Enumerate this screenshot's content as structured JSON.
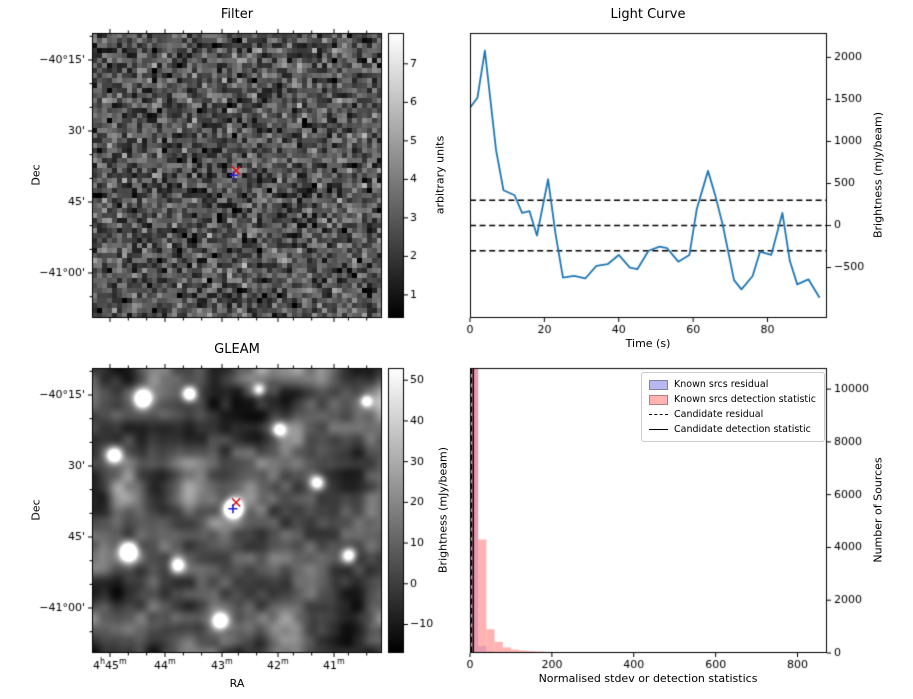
{
  "figure": {
    "background": "#ffffff"
  },
  "chart_data": [
    {
      "id": "filter",
      "type": "heatmap",
      "title": "Filter",
      "ylabel": "Dec",
      "ytick_labels": [
        "−40°15'",
        "30'",
        "45'",
        "−41°00'"
      ],
      "ytick_pos": [
        0.0947,
        0.3439,
        0.593,
        0.8421
      ],
      "xtick_pos": [
        0.062,
        0.2517,
        0.4483,
        0.6414,
        0.8345
      ],
      "colorbar": {
        "label": "arbitrary units",
        "ticks": [
          1,
          2,
          3,
          4,
          5,
          6,
          7
        ],
        "vmin": 0.4,
        "vmax": 7.8
      },
      "noise": {
        "kind": "fine",
        "mean": 2.8,
        "std": 1.05,
        "seed": 1234
      },
      "markers": [
        {
          "shape": "x",
          "color": "#dd1111",
          "rx": 0.497,
          "ry": 0.483
        },
        {
          "shape": "+",
          "color": "#2222cc",
          "rx": 0.488,
          "ry": 0.499
        }
      ]
    },
    {
      "id": "light_curve",
      "type": "line",
      "title": "Light Curve",
      "xlabel": "Time (s)",
      "ylabel": "Brightness (mJy/beam)",
      "line_color": "#1f77b4",
      "x": [
        0,
        2,
        4,
        7,
        9,
        12,
        14,
        16,
        18,
        21,
        23,
        25,
        28,
        31,
        34,
        37,
        40,
        43,
        45,
        48,
        51,
        53,
        56,
        59,
        61,
        64,
        66,
        68,
        71,
        73,
        76,
        78,
        81,
        84,
        86,
        88,
        91,
        94
      ],
      "y": [
        1400,
        1520,
        2080,
        900,
        420,
        360,
        150,
        170,
        -120,
        550,
        -100,
        -620,
        -600,
        -630,
        -480,
        -460,
        -350,
        -500,
        -520,
        -300,
        -250,
        -270,
        -430,
        -350,
        200,
        650,
        350,
        0,
        -650,
        -760,
        -600,
        -310,
        -350,
        150,
        -420,
        -700,
        -640,
        -860
      ],
      "dashed_hlines": [
        300,
        0,
        -300
      ],
      "xlim": [
        0,
        96
      ],
      "ylim": [
        -1100,
        2290
      ],
      "xticks": [
        0,
        20,
        40,
        60,
        80
      ],
      "yticks": [
        -500,
        0,
        500,
        1000,
        1500,
        2000
      ]
    },
    {
      "id": "gleam",
      "type": "heatmap",
      "title": "GLEAM",
      "xlabel": "RA",
      "ylabel": "Dec",
      "xtick_labels": [
        "4h45m",
        "44m",
        "43m",
        "42m",
        "41m"
      ],
      "xtick_pos": [
        0.062,
        0.2517,
        0.4483,
        0.6414,
        0.8345
      ],
      "ytick_labels": [
        "−40°15'",
        "30'",
        "45'",
        "−41°00'"
      ],
      "ytick_pos": [
        0.0947,
        0.3439,
        0.593,
        0.8421
      ],
      "colorbar": {
        "label": "Brightness (mJy/beam)",
        "ticks": [
          -10,
          0,
          10,
          20,
          30,
          40,
          50
        ],
        "vmin": -17,
        "vmax": 53
      },
      "noise": {
        "kind": "smooth",
        "seed": 77
      },
      "blobs": [
        [
          0.487,
          0.492,
          160,
          5.5
        ],
        [
          0.175,
          0.105,
          90,
          6
        ],
        [
          0.335,
          0.09,
          70,
          5
        ],
        [
          0.075,
          0.305,
          75,
          5.5
        ],
        [
          0.125,
          0.645,
          95,
          6.5
        ],
        [
          0.295,
          0.69,
          60,
          5
        ],
        [
          0.44,
          0.885,
          75,
          5.5
        ],
        [
          0.775,
          0.4,
          65,
          5
        ],
        [
          0.645,
          0.215,
          55,
          4.5
        ],
        [
          0.885,
          0.655,
          60,
          5
        ],
        [
          0.575,
          0.075,
          55,
          4.5
        ],
        [
          0.945,
          0.115,
          50,
          4
        ]
      ],
      "markers": [
        {
          "shape": "x",
          "color": "#dd1111",
          "rx": 0.497,
          "ry": 0.472
        },
        {
          "shape": "+",
          "color": "#2222cc",
          "rx": 0.486,
          "ry": 0.494
        }
      ]
    },
    {
      "id": "histogram",
      "type": "histogram",
      "xlabel": "Normalised stdev or detection statistics",
      "ylabel": "Number of Sources",
      "bin_width": 20,
      "series": [
        {
          "name": "Known srcs residual",
          "color": "#8888ea",
          "alpha": 0.55,
          "values": [
            10900,
            260,
            60,
            25,
            12,
            8,
            5,
            4,
            3,
            2,
            2,
            1,
            1,
            1,
            1,
            0,
            0,
            0,
            0,
            0,
            0,
            0,
            0,
            0,
            0,
            0,
            0,
            0,
            0,
            0,
            0,
            0,
            0,
            0,
            0,
            0,
            0,
            0,
            0,
            0,
            0,
            0,
            0,
            0
          ]
        },
        {
          "name": "Known srcs detection statistic",
          "color": "#ff8888",
          "alpha": 0.65,
          "values": [
            11500,
            4300,
            900,
            420,
            210,
            130,
            90,
            70,
            55,
            45,
            38,
            32,
            28,
            25,
            22,
            20,
            18,
            16,
            15,
            14,
            13,
            12,
            11,
            10,
            10,
            9,
            9,
            8,
            8,
            7,
            7,
            7,
            6,
            6,
            6,
            5,
            5,
            5,
            5,
            4,
            4,
            4,
            4,
            4
          ]
        }
      ],
      "candidate_lines": [
        {
          "name": "Candidate residual",
          "style": "dashed",
          "x": 3
        },
        {
          "name": "Candidate detection statistic",
          "style": "solid",
          "x": 8
        }
      ],
      "xlim": [
        0,
        872
      ],
      "ylim": [
        0,
        10800
      ],
      "xticks": [
        0,
        200,
        400,
        600,
        800
      ],
      "yticks": [
        0,
        2000,
        4000,
        6000,
        8000,
        10000
      ],
      "legend": {
        "entries": [
          {
            "label": "Known srcs residual",
            "swatch": "patch",
            "color": "#b9b9f2"
          },
          {
            "label": "Known srcs detection statistic",
            "swatch": "patch",
            "color": "#ffb3b3"
          },
          {
            "label": "Candidate residual",
            "swatch": "dashed-line",
            "color": "#000000"
          },
          {
            "label": "Candidate detection statistic",
            "swatch": "solid-line",
            "color": "#000000"
          }
        ]
      }
    }
  ]
}
